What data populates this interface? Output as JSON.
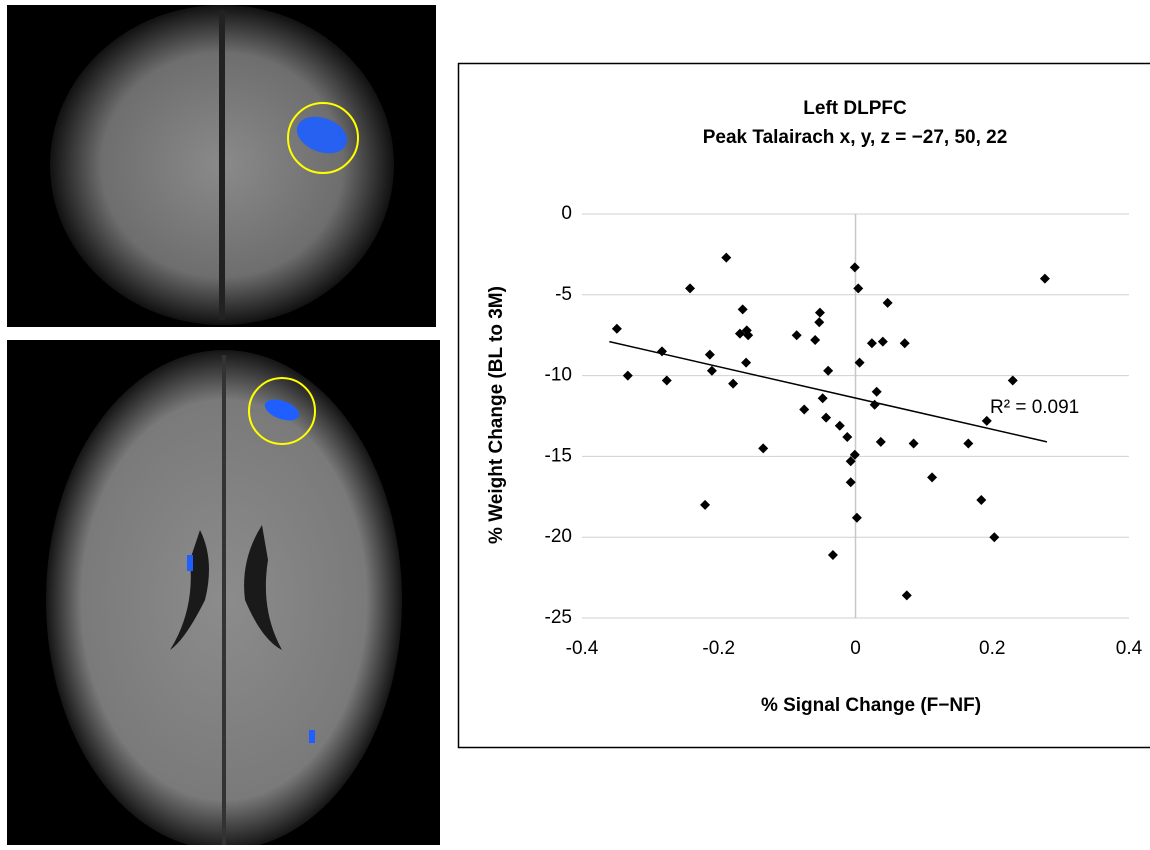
{
  "chart_data": {
    "type": "scatter",
    "title": "Left DLPFC",
    "subtitle": "Peak Talairach x, y, z = −27, 50, 22",
    "x_label": "% Signal Change (F−NF)",
    "y_label": "% Weight Change (BL to 3M)",
    "annotation": "R² = 0.091",
    "color": "#000000",
    "grid": "y",
    "xlim": [
      -0.4,
      0.4
    ],
    "xticks": [
      -0.4,
      -0.2,
      0,
      0.2,
      0.4
    ],
    "ylim": [
      -25,
      0
    ],
    "yticks": [
      0,
      -5,
      -10,
      -15,
      -20,
      -25
    ],
    "x": [
      -0.349,
      -0.333,
      -0.283,
      -0.276,
      -0.242,
      -0.189,
      -0.213,
      -0.21,
      -0.22,
      -0.179,
      -0.165,
      -0.16,
      -0.169,
      -0.159,
      -0.157,
      -0.135,
      -0.086,
      -0.075,
      -0.059,
      -0.052,
      -0.053,
      -0.048,
      -0.043,
      -0.04,
      -0.033,
      -0.023,
      -0.012,
      -0.007,
      -0.007,
      -0.001,
      -0.001,
      0.002,
      0.004,
      0.006,
      0.024,
      0.028,
      0.031,
      0.037,
      0.04,
      0.047,
      0.072,
      0.075,
      0.085,
      0.112,
      0.165,
      0.184,
      0.192,
      0.203,
      0.23,
      0.277
    ],
    "values": [
      -7.1,
      -10.0,
      -8.5,
      -10.3,
      -4.6,
      -2.7,
      -8.7,
      -9.7,
      -18.0,
      -10.5,
      -5.9,
      -9.2,
      -7.4,
      -7.2,
      -7.5,
      -14.5,
      -7.5,
      -12.1,
      -7.8,
      -6.1,
      -6.7,
      -11.4,
      -12.6,
      -9.7,
      -21.1,
      -13.1,
      -13.8,
      -15.3,
      -16.6,
      -3.3,
      -14.9,
      -18.8,
      -4.6,
      -9.2,
      -8.0,
      -11.8,
      -11.0,
      -14.1,
      -7.9,
      -5.5,
      -8.0,
      -23.6,
      -14.2,
      -16.3,
      -14.2,
      -17.7,
      -12.8,
      -20.0,
      -10.3,
      -4.0
    ],
    "trendline": {
      "x": [
        -0.36,
        0.28
      ],
      "y": [
        -7.9,
        -14.1
      ]
    }
  }
}
